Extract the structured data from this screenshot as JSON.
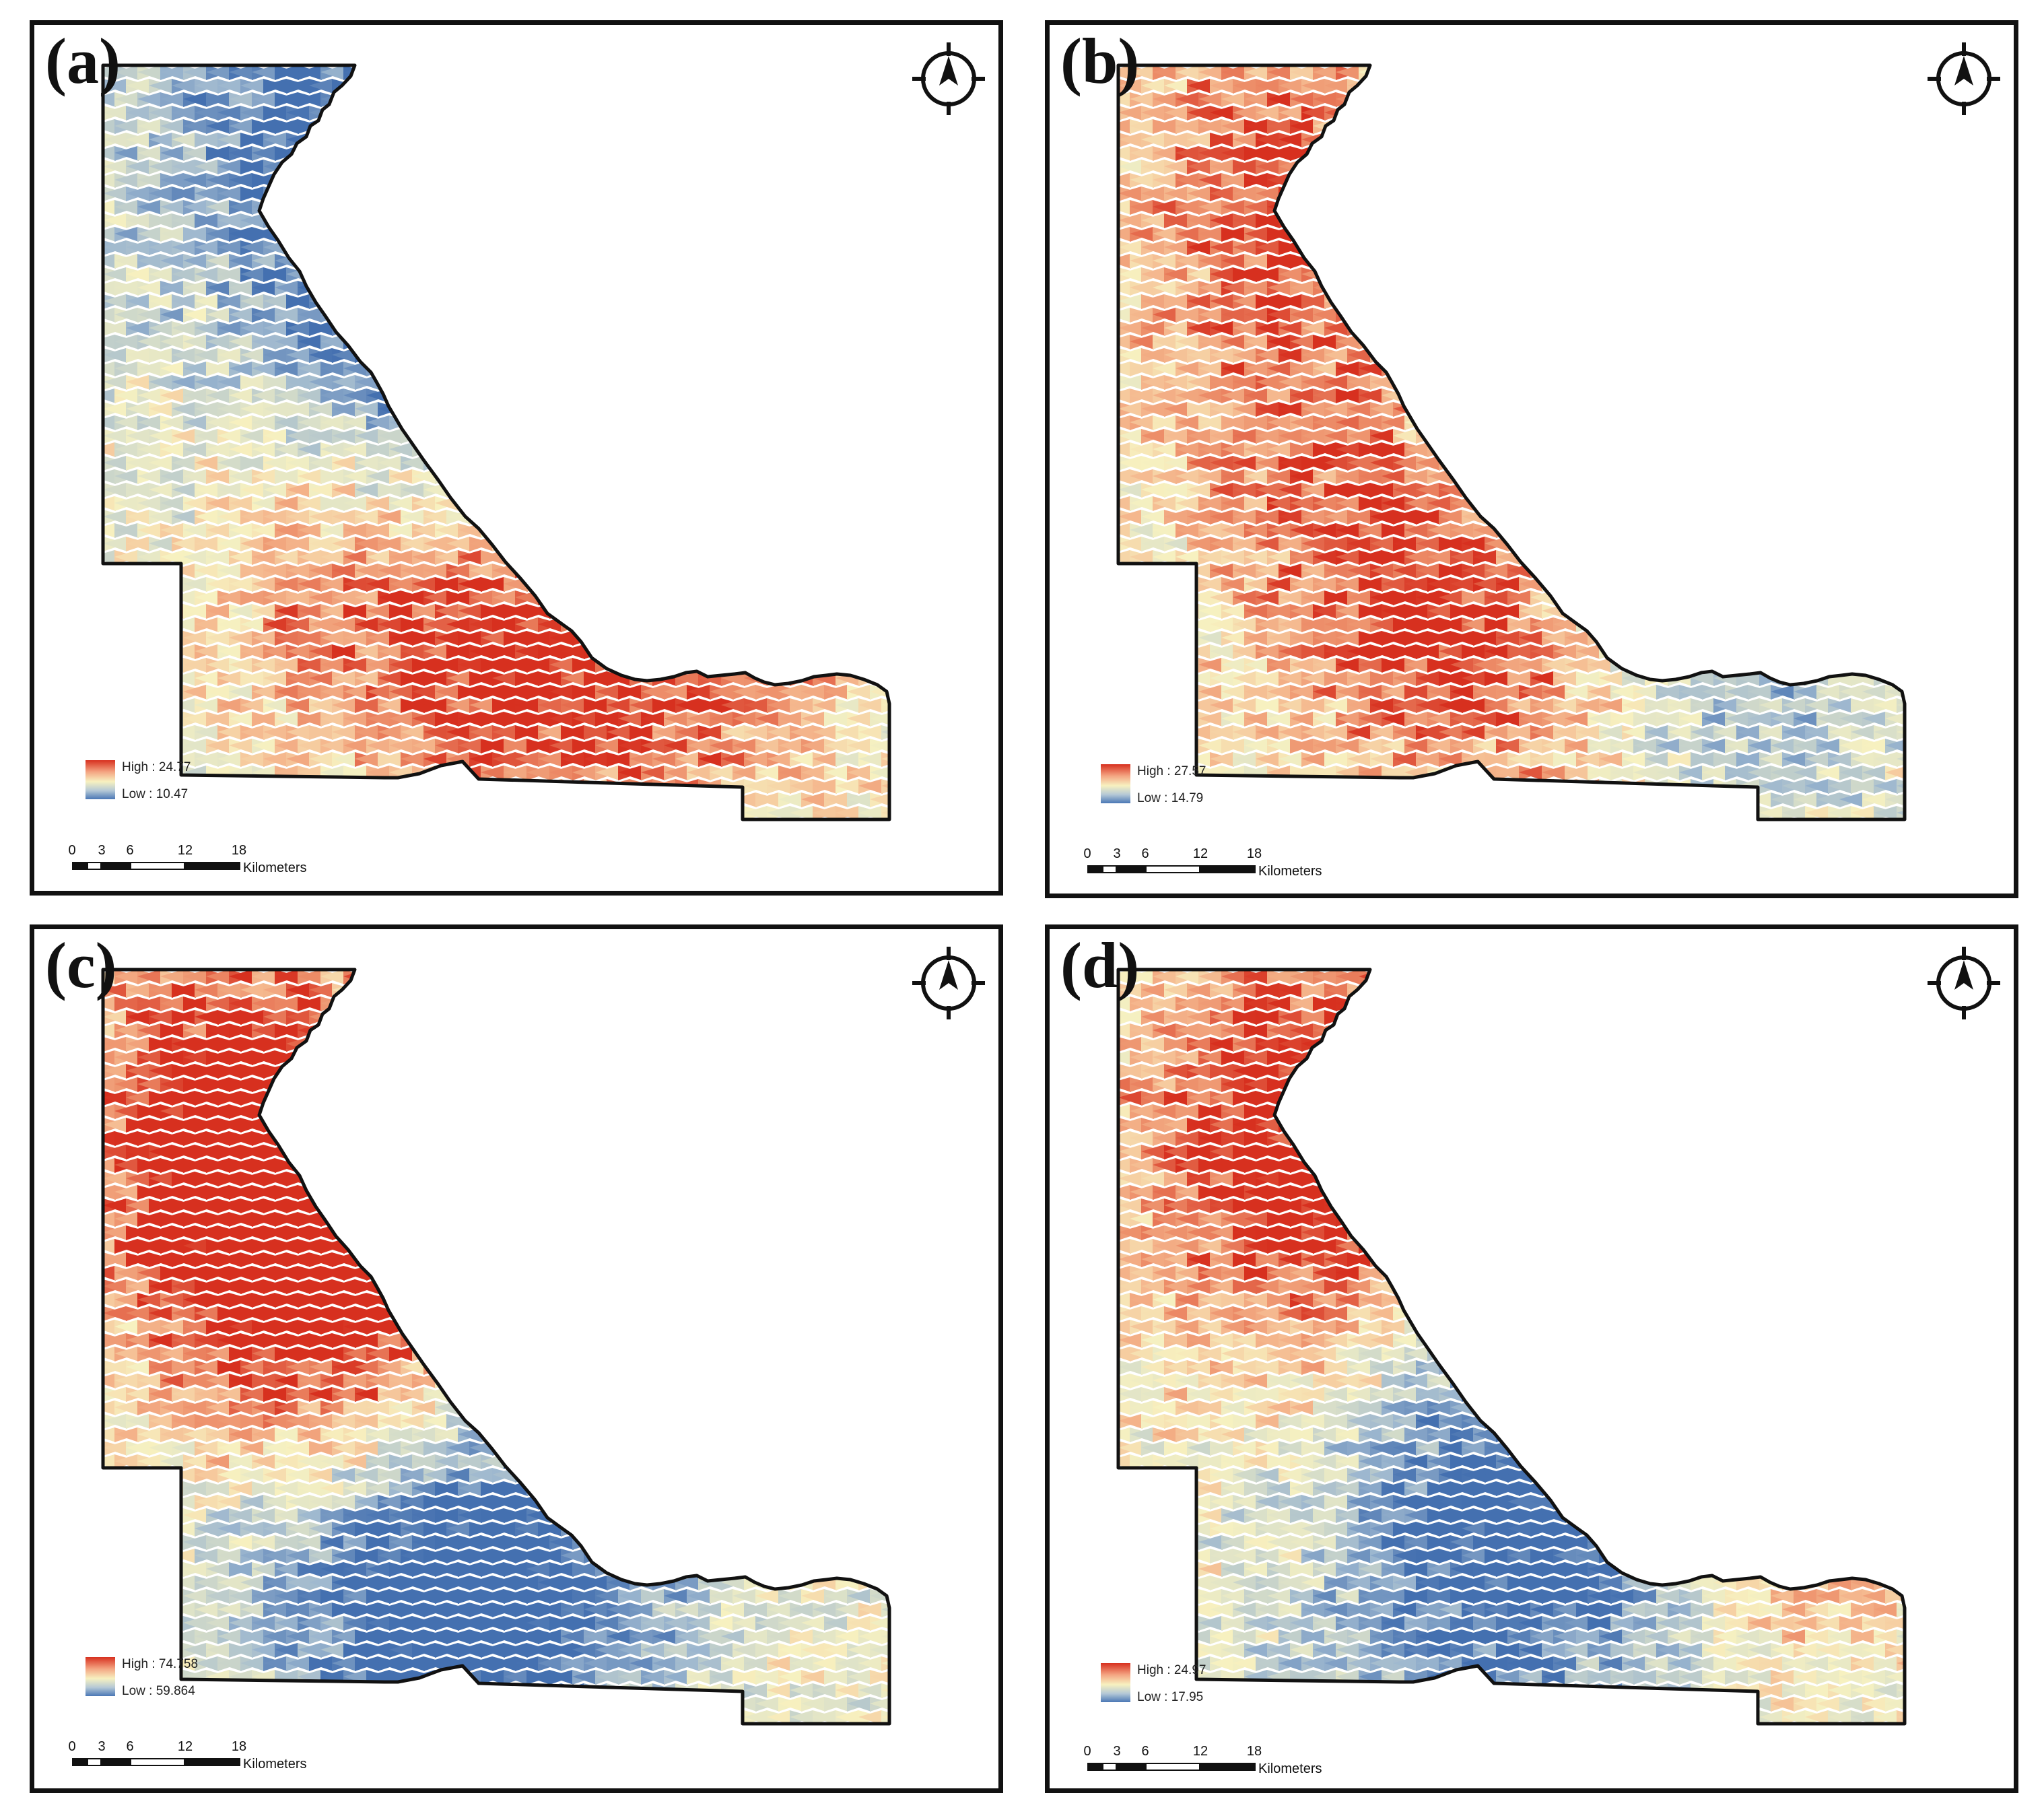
{
  "panels": [
    {
      "id": "a",
      "label": "(a)",
      "legend": {
        "high": "High : 24.77",
        "low": "Low : 10.47"
      },
      "surface": {
        "base": 0.45,
        "hotspots": [
          [
            0.55,
            0.78,
            0.95
          ],
          [
            0.3,
            0.72,
            0.6
          ],
          [
            0.82,
            0.78,
            0.5
          ]
        ],
        "coldspots": [
          [
            0.25,
            0.08,
            0.7
          ],
          [
            0.4,
            0.25,
            0.5
          ],
          [
            0.48,
            0.38,
            0.7
          ]
        ]
      }
    },
    {
      "id": "b",
      "label": "(b)",
      "legend": {
        "high": "High : 27.57",
        "low": "Low : 14.79"
      },
      "surface": {
        "base": 0.55,
        "hotspots": [
          [
            0.2,
            0.15,
            0.7
          ],
          [
            0.3,
            0.5,
            0.6
          ],
          [
            0.45,
            0.72,
            0.95
          ]
        ],
        "coldspots": [
          [
            0.55,
            0.35,
            0.85
          ],
          [
            0.6,
            0.55,
            0.7
          ],
          [
            0.8,
            0.8,
            0.5
          ]
        ]
      }
    },
    {
      "id": "c",
      "label": "(c)",
      "legend": {
        "high": "High : 74.758",
        "low": "Low : 59.864"
      },
      "surface": {
        "base": 0.5,
        "hotspots": [
          [
            0.15,
            0.15,
            0.85
          ],
          [
            0.2,
            0.35,
            0.85
          ],
          [
            0.35,
            0.5,
            0.8
          ]
        ],
        "coldspots": [
          [
            0.35,
            0.8,
            0.8
          ],
          [
            0.55,
            0.65,
            0.6
          ],
          [
            0.5,
            0.9,
            0.6
          ]
        ]
      }
    },
    {
      "id": "d",
      "label": "(d)",
      "legend": {
        "high": "High : 24.97",
        "low": "Low : 17.95"
      },
      "surface": {
        "base": 0.5,
        "hotspots": [
          [
            0.2,
            0.12,
            0.75
          ],
          [
            0.25,
            0.35,
            0.8
          ],
          [
            0.85,
            0.7,
            0.6
          ]
        ],
        "coldspots": [
          [
            0.45,
            0.55,
            0.6
          ],
          [
            0.6,
            0.75,
            0.7
          ],
          [
            0.4,
            0.85,
            0.5
          ]
        ]
      }
    }
  ],
  "scalebar": {
    "ticks": [
      "0",
      "3",
      "6",
      "12",
      "18"
    ],
    "unit": "Kilometers"
  },
  "colors": {
    "high": "#d7301f",
    "mid": "#f7f1c0",
    "low": "#4a77b5",
    "outline": "#111111"
  },
  "icons": {
    "north": "north-arrow-icon"
  }
}
